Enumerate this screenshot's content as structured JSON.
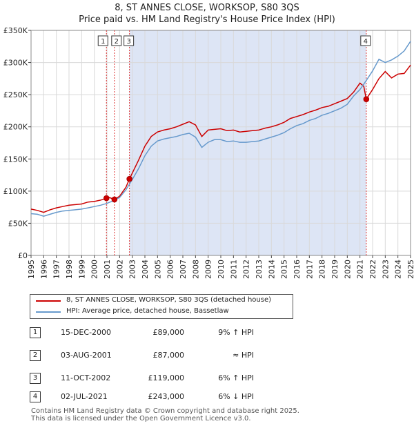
{
  "title": {
    "line1": "8, ST ANNES CLOSE, WORKSOP, S80 3QS",
    "line2": "Price paid vs. HM Land Registry's House Price Index (HPI)"
  },
  "legend": {
    "property": "8, ST ANNES CLOSE, WORKSOP, S80 3QS (detached house)",
    "hpi": "HPI: Average price, detached house, Bassetlaw"
  },
  "sales": [
    {
      "num": "1",
      "date": "15-DEC-2000",
      "price": "£89,000",
      "hpi": "9% ↑ HPI"
    },
    {
      "num": "2",
      "date": "03-AUG-2001",
      "price": "£87,000",
      "hpi": "≈ HPI"
    },
    {
      "num": "3",
      "date": "11-OCT-2002",
      "price": "£119,000",
      "hpi": "6% ↑ HPI"
    },
    {
      "num": "4",
      "date": "02-JUL-2021",
      "price": "£243,000",
      "hpi": "6% ↓ HPI"
    }
  ],
  "footer": {
    "line1": "Contains HM Land Registry data © Crown copyright and database right 2025.",
    "line2": "This data is licensed under the Open Government Licence v3.0."
  },
  "colors": {
    "property": "#cc0000",
    "hpi": "#6699cc",
    "shade": "#dde5f5",
    "grid": "#d9d9d9",
    "vline": "#dd3333"
  },
  "chart_data": {
    "type": "line",
    "title": "8, ST ANNES CLOSE, WORKSOP, S80 3QS",
    "subtitle": "Price paid vs. HM Land Registry's House Price Index (HPI)",
    "xlabel": "",
    "ylabel": "",
    "xlim": [
      1995,
      2025
    ],
    "ylim": [
      0,
      350000
    ],
    "yticks": [
      0,
      50000,
      100000,
      150000,
      200000,
      250000,
      300000,
      350000
    ],
    "ytick_labels": [
      "£0",
      "£50K",
      "£100K",
      "£150K",
      "£200K",
      "£250K",
      "£300K",
      "£350K"
    ],
    "xticks": [
      1995,
      1996,
      1997,
      1998,
      1999,
      2000,
      2001,
      2002,
      2003,
      2004,
      2005,
      2006,
      2007,
      2008,
      2009,
      2010,
      2011,
      2012,
      2013,
      2014,
      2015,
      2016,
      2017,
      2018,
      2019,
      2020,
      2021,
      2022,
      2023,
      2024,
      2025
    ],
    "shaded_ranges": [
      [
        2002.78,
        2021.5
      ]
    ],
    "series": [
      {
        "name": "8, ST ANNES CLOSE, WORKSOP, S80 3QS (detached house)",
        "x": [
          1995,
          1995.5,
          1996,
          1996.5,
          1997,
          1997.5,
          1998,
          1998.5,
          1999,
          1999.5,
          2000,
          2000.5,
          2000.96,
          2001.2,
          2001.59,
          2002,
          2002.5,
          2002.78,
          2003,
          2003.5,
          2004,
          2004.5,
          2005,
          2005.5,
          2006,
          2006.5,
          2007,
          2007.5,
          2008,
          2008.5,
          2009,
          2009.5,
          2010,
          2010.5,
          2011,
          2011.5,
          2012,
          2012.5,
          2013,
          2013.5,
          2014,
          2014.5,
          2015,
          2015.5,
          2016,
          2016.5,
          2017,
          2017.5,
          2018,
          2018.5,
          2019,
          2019.5,
          2020,
          2020.5,
          2021,
          2021.3,
          2021.5,
          2022,
          2022.5,
          2023,
          2023.5,
          2024,
          2024.5,
          2025
        ],
        "values": [
          72000,
          70000,
          67000,
          71000,
          74000,
          76000,
          78000,
          79000,
          80000,
          83000,
          84000,
          86000,
          89000,
          90000,
          87000,
          92000,
          106000,
          119000,
          128000,
          148000,
          170000,
          185000,
          192000,
          195000,
          197000,
          200000,
          204000,
          208000,
          203000,
          185000,
          195000,
          196000,
          197000,
          194000,
          195000,
          192000,
          193000,
          194000,
          195000,
          198000,
          200000,
          203000,
          207000,
          213000,
          216000,
          219000,
          223000,
          226000,
          230000,
          232000,
          236000,
          240000,
          244000,
          254000,
          268000,
          263000,
          243000,
          258000,
          275000,
          286000,
          276000,
          282000,
          283000,
          296000
        ]
      },
      {
        "name": "HPI: Average price, detached house, Bassetlaw",
        "x": [
          1995,
          1995.5,
          1996,
          1996.5,
          1997,
          1997.5,
          1998,
          1998.5,
          1999,
          1999.5,
          2000,
          2000.5,
          2001,
          2001.5,
          2002,
          2002.5,
          2003,
          2003.5,
          2004,
          2004.5,
          2005,
          2005.5,
          2006,
          2006.5,
          2007,
          2007.5,
          2008,
          2008.5,
          2009,
          2009.5,
          2010,
          2010.5,
          2011,
          2011.5,
          2012,
          2012.5,
          2013,
          2013.5,
          2014,
          2014.5,
          2015,
          2015.5,
          2016,
          2016.5,
          2017,
          2017.5,
          2018,
          2018.5,
          2019,
          2019.5,
          2020,
          2020.5,
          2021,
          2021.5,
          2022,
          2022.5,
          2023,
          2023.5,
          2024,
          2024.5,
          2025
        ],
        "values": [
          65000,
          64000,
          61000,
          64000,
          67000,
          69000,
          70000,
          71000,
          72000,
          74000,
          76000,
          78000,
          81000,
          85000,
          90000,
          102000,
          118000,
          135000,
          155000,
          170000,
          178000,
          181000,
          183000,
          185000,
          188000,
          190000,
          184000,
          168000,
          176000,
          180000,
          180000,
          177000,
          178000,
          176000,
          176000,
          177000,
          178000,
          181000,
          184000,
          187000,
          191000,
          197000,
          202000,
          205000,
          210000,
          213000,
          218000,
          221000,
          225000,
          229000,
          235000,
          248000,
          258000,
          272000,
          287000,
          305000,
          300000,
          304000,
          310000,
          318000,
          333000
        ]
      }
    ],
    "sale_points": [
      {
        "label": "1",
        "x": 2000.96,
        "value": 89000
      },
      {
        "label": "2",
        "x": 2001.59,
        "value": 87000
      },
      {
        "label": "3",
        "x": 2002.78,
        "value": 119000
      },
      {
        "label": "4",
        "x": 2021.5,
        "value": 243000
      }
    ]
  }
}
